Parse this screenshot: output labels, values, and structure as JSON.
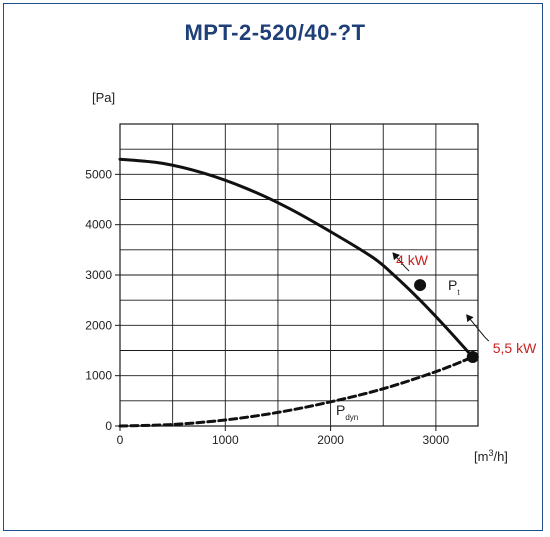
{
  "chart_data": {
    "type": "line",
    "title": "MPT-2-520/40-?T",
    "ylabel": "[Pa]",
    "xlabel_main": "[m",
    "xlabel_sup": "3",
    "xlabel_end": "/h]",
    "xlim": [
      0,
      3400
    ],
    "ylim": [
      0,
      6000
    ],
    "x_grid_step": 500,
    "y_grid_step": 500,
    "x_ticks": [
      0,
      1000,
      2000,
      3000
    ],
    "y_ticks": [
      0,
      1000,
      2000,
      3000,
      4000,
      5000
    ],
    "grid": true,
    "series": [
      {
        "name": "P",
        "name_sub": "t",
        "style": "solid",
        "x": [
          0,
          400,
          800,
          1200,
          1600,
          2000,
          2400,
          2600,
          2850,
          3100,
          3350
        ],
        "y": [
          5300,
          5220,
          5020,
          4720,
          4330,
          3860,
          3350,
          3000,
          2500,
          1950,
          1370
        ]
      },
      {
        "name": "P",
        "name_sub": "dyn",
        "style": "dashed",
        "x": [
          0,
          500,
          1000,
          1500,
          2000,
          2500,
          3000,
          3350
        ],
        "y": [
          0,
          30,
          120,
          270,
          480,
          740,
          1080,
          1370
        ]
      }
    ],
    "markers": [
      {
        "label": "4 kW",
        "x": 2850,
        "y": 2800
      },
      {
        "label": "5,5 kW",
        "x": 3350,
        "y": 1370
      }
    ]
  }
}
